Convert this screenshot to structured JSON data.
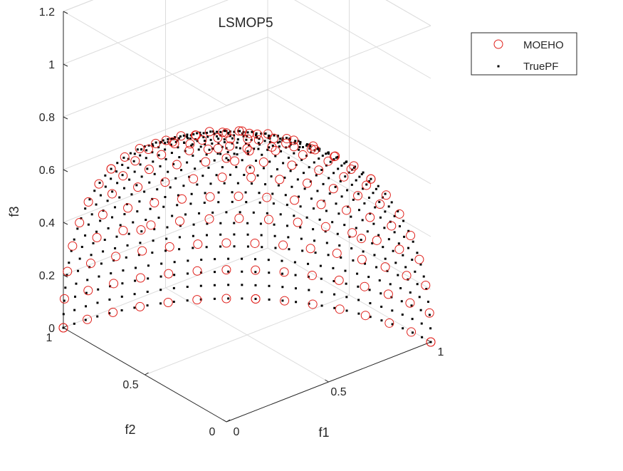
{
  "chart_data": {
    "type": "scatter3d",
    "title": "LSMOP5",
    "xlabel": "f1",
    "ylabel": "f2",
    "zlabel": "f3",
    "xlim": [
      0,
      1
    ],
    "ylim": [
      0,
      1
    ],
    "zlim": [
      0,
      1.2
    ],
    "xticks": [
      "0",
      "0.5",
      "1"
    ],
    "yticks": [
      "0",
      "0.5",
      "1"
    ],
    "zticks": [
      "0",
      "0.2",
      "0.4",
      "0.6",
      "0.8",
      "1",
      "1.2"
    ],
    "grid": true,
    "legend_location": "top-right",
    "legend": [
      {
        "name": "MOEHO",
        "marker": "open-circle",
        "color": "#e0201b"
      },
      {
        "name": "TruePF",
        "marker": "dot",
        "color": "#000000"
      }
    ],
    "series": [
      {
        "name": "MOEHO",
        "description_of_shape": "points on unit sphere octant x^2+y^2+z^2=1",
        "spherical_grid": {
          "theta_steps": 14,
          "phi_steps": 14
        },
        "points": [
          [
            1.0,
            0.0,
            0.0
          ],
          [
            0.0,
            1.0,
            0.0
          ],
          [
            0.0,
            0.0,
            1.0
          ],
          [
            0.707,
            0.707,
            0.0
          ],
          [
            0.707,
            0.0,
            0.707
          ],
          [
            0.0,
            0.707,
            0.707
          ],
          [
            0.577,
            0.577,
            0.577
          ],
          [
            0.9,
            0.3,
            0.316
          ],
          [
            0.3,
            0.9,
            0.316
          ],
          [
            0.316,
            0.3,
            0.9
          ]
        ]
      },
      {
        "name": "TruePF",
        "description_of_shape": "dense points on unit sphere octant x^2+y^2+z^2=1",
        "spherical_grid": {
          "theta_steps": 30,
          "phi_steps": 30
        }
      }
    ]
  }
}
